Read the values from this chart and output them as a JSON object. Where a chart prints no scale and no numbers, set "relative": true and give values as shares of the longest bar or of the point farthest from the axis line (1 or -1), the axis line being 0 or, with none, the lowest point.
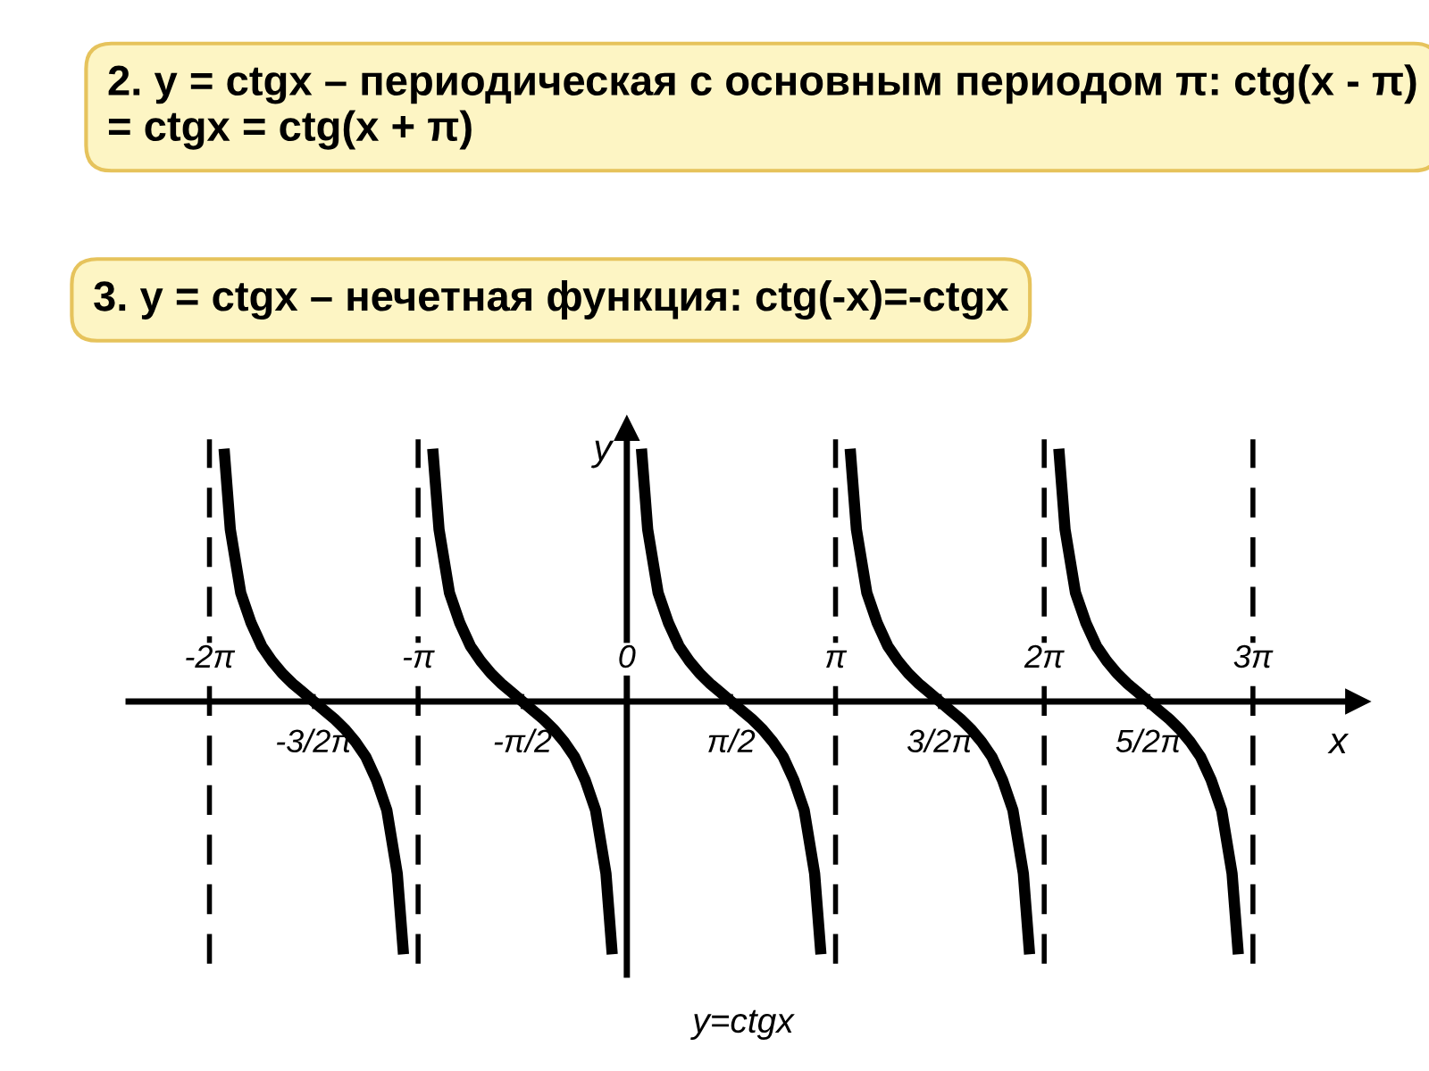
{
  "chart_data": {
    "type": "line",
    "title": "2. y = ctgx – периодическая с основным периодом π: ctg(x - π) = ctgx = ctg(x + π)",
    "subtitle": "3. y = ctgx – нечетная функция: ctg(-x)=-ctgx",
    "xlabel": "x",
    "ylabel": "y",
    "annotations": [
      "y=ctgx"
    ],
    "relative": true,
    "series": [
      {
        "color": "#000000",
        "x": [
          -6.063,
          -5.969,
          -5.812,
          -5.655,
          -5.498,
          -5.341,
          -5.184,
          -5.027,
          -4.869,
          -4.712,
          -4.555,
          -4.398,
          -4.241,
          -4.084,
          -3.927,
          -3.77,
          -3.613,
          -3.456,
          -3.362,
          -3.142,
          -2.922,
          -2.827,
          -2.67,
          -2.513,
          -2.356,
          -2.199,
          -2.042,
          -1.885,
          -1.728,
          -1.571,
          -1.414,
          -1.257,
          -1.1,
          -0.942,
          -0.785,
          -0.628,
          -0.471,
          -0.314,
          -0.22,
          0.0,
          0.22,
          0.314,
          0.471,
          0.628,
          0.785,
          0.942,
          1.1,
          1.257,
          1.414,
          1.571,
          1.728,
          1.885,
          2.042,
          2.199,
          2.356,
          2.513,
          2.67,
          2.827,
          2.922,
          3.142,
          3.362,
          3.456,
          3.613,
          3.77,
          3.927,
          4.084,
          4.241,
          4.398,
          4.555,
          4.712,
          4.869,
          5.027,
          5.184,
          5.341,
          5.498,
          5.655,
          5.812,
          5.969,
          6.063,
          6.283,
          6.503,
          6.597,
          6.754,
          6.912,
          7.069,
          7.226,
          7.383,
          7.54,
          7.697,
          7.854,
          8.011,
          8.168,
          8.325,
          8.482,
          8.639,
          8.796,
          8.954,
          9.111,
          9.205
        ],
        "values": [
          1.0,
          0.68,
          0.43,
          0.31,
          0.22,
          0.16,
          0.11,
          0.07,
          0.035,
          0,
          -0.035,
          -0.07,
          -0.11,
          -0.16,
          -0.22,
          -0.31,
          -0.43,
          -0.68,
          -1.0,
          null,
          1.0,
          0.68,
          0.43,
          0.31,
          0.22,
          0.16,
          0.11,
          0.07,
          0.035,
          0,
          -0.035,
          -0.07,
          -0.11,
          -0.16,
          -0.22,
          -0.31,
          -0.43,
          -0.68,
          -1.0,
          null,
          1.0,
          0.68,
          0.43,
          0.31,
          0.22,
          0.16,
          0.11,
          0.07,
          0.035,
          0,
          -0.035,
          -0.07,
          -0.11,
          -0.16,
          -0.22,
          -0.31,
          -0.43,
          -0.68,
          -1.0,
          null,
          1.0,
          0.68,
          0.43,
          0.31,
          0.22,
          0.16,
          0.11,
          0.07,
          0.035,
          0,
          -0.035,
          -0.07,
          -0.11,
          -0.16,
          -0.22,
          -0.31,
          -0.43,
          -0.68,
          -1.0,
          null,
          1.0,
          0.68,
          0.43,
          0.31,
          0.22,
          0.16,
          0.11,
          0.07,
          0.035,
          0,
          -0.035,
          -0.07,
          -0.11,
          -0.16,
          -0.22,
          -0.31,
          -0.43,
          -0.68,
          -1.0
        ]
      }
    ],
    "xlim": [
      -7.5,
      11.0
    ],
    "xticks": [
      {
        "value": -4.712,
        "label": "-3/2π"
      },
      {
        "value": -1.571,
        "label": "-π/2"
      },
      {
        "value": 1.571,
        "label": "π/2"
      },
      {
        "value": 4.712,
        "label": "3/2π"
      },
      {
        "value": 7.854,
        "label": "5/2π"
      }
    ],
    "x2lim": [
      -7.5,
      11.0
    ],
    "x2ticks": [
      {
        "value": -6.283,
        "label": "-2π"
      },
      {
        "value": -3.142,
        "label": "-π"
      },
      {
        "value": 0,
        "label": "0"
      },
      {
        "value": 3.142,
        "label": "π"
      },
      {
        "value": 6.283,
        "label": "2π"
      },
      {
        "value": 9.425,
        "label": "3π"
      }
    ],
    "tick_labels": "x",
    "ref_lines": [
      {
        "axis": "x",
        "value": -6.283,
        "line_style": "dashed"
      },
      {
        "axis": "x",
        "value": -3.142,
        "line_style": "dashed"
      },
      {
        "axis": "x",
        "value": 3.142,
        "line_style": "dashed"
      },
      {
        "axis": "x",
        "value": 6.283,
        "line_style": "dashed"
      },
      {
        "axis": "x",
        "value": 9.425,
        "line_style": "dashed"
      }
    ],
    "grid": false,
    "legend": false,
    "marker": "none",
    "line_style": "solid"
  }
}
